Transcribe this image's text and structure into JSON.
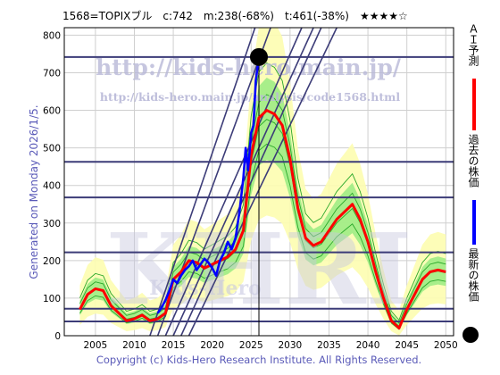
{
  "header": {
    "code": "1568=TOPIXブル",
    "current": "c:742",
    "min": "m:238(-68%)",
    "target": "t:461(-38%)",
    "stars": "★★★★☆"
  },
  "side_text": "Generated on Monday 2026/1/5.",
  "footer": "Copyright (c) Kids-Hero Research Institute. All Rights Reserved.",
  "watermarks": {
    "url_main": "http://kids-hero.main.jp/",
    "url_analysis": "http://kids-hero.main.jp/analysis/code1568.html",
    "big": "KHRI",
    "small": "Kids-Hero"
  },
  "legend": {
    "forecast": "ＡＩ予測",
    "past": "過去の株価",
    "latest": "最新の株価"
  },
  "colors": {
    "forecast": "#ff0000",
    "past": "#0000ff",
    "latest": "#000000",
    "band_fill": "#fdfdb0",
    "band_inner": "#8be87b",
    "band_line": "#2aa82a",
    "guide": "#3c3c78",
    "grid": "#cfcfcf"
  },
  "chart_data": {
    "type": "line",
    "xlim": [
      2001,
      2051
    ],
    "ylim": [
      0,
      820
    ],
    "xticks": [
      2005,
      2010,
      2015,
      2020,
      2025,
      2030,
      2035,
      2040,
      2045,
      2050
    ],
    "yticks": [
      0,
      100,
      200,
      300,
      400,
      500,
      600,
      700,
      800
    ],
    "grid": true,
    "horizontal_levels": [
      742,
      463,
      368,
      222,
      72,
      38
    ],
    "latest_point": {
      "x": 2026.0,
      "y": 742
    },
    "current_year_marker": 2026.0,
    "trend_lines": [
      {
        "x": [
          2012.0,
          2025.5
        ],
        "y": [
          0,
          820
        ]
      },
      {
        "x": [
          2013.0,
          2027.5
        ],
        "y": [
          0,
          820
        ]
      },
      {
        "x": [
          2014.0,
          2031.5
        ],
        "y": [
          0,
          820
        ]
      },
      {
        "x": [
          2015.0,
          2033.0
        ],
        "y": [
          0,
          820
        ]
      },
      {
        "x": [
          2016.0,
          2034.0
        ],
        "y": [
          0,
          820
        ]
      },
      {
        "x": [
          2017.0,
          2036.0
        ],
        "y": [
          0,
          820
        ]
      }
    ],
    "series": [
      {
        "key": "forecast",
        "x": [
          2003,
          2004,
          2005,
          2006,
          2007,
          2008,
          2009,
          2010,
          2011,
          2012,
          2013,
          2014,
          2015,
          2016,
          2017,
          2018,
          2019,
          2020,
          2021,
          2022,
          2023,
          2024,
          2025,
          2026,
          2027,
          2028,
          2029,
          2030,
          2031,
          2032,
          2033,
          2034,
          2035,
          2036,
          2037,
          2038,
          2039,
          2040,
          2041,
          2042,
          2043,
          2044,
          2045,
          2046,
          2047,
          2048,
          2049,
          2050
        ],
        "y": [
          70,
          110,
          125,
          120,
          80,
          60,
          40,
          45,
          55,
          40,
          45,
          60,
          150,
          170,
          200,
          195,
          180,
          190,
          200,
          210,
          230,
          280,
          480,
          580,
          600,
          590,
          560,
          470,
          340,
          260,
          240,
          250,
          280,
          310,
          330,
          350,
          310,
          250,
          170,
          100,
          40,
          20,
          70,
          110,
          150,
          170,
          175,
          170
        ]
      },
      {
        "key": "past",
        "x": [
          2013.0,
          2013.5,
          2014.0,
          2014.5,
          2015.0,
          2015.5,
          2016.0,
          2016.5,
          2017.0,
          2017.5,
          2018.0,
          2018.5,
          2019.0,
          2019.5,
          2020.0,
          2020.5,
          2021.0,
          2021.5,
          2022.0,
          2022.5,
          2023.0,
          2023.5,
          2024.0,
          2024.3,
          2024.6,
          2025.0,
          2025.3,
          2025.6,
          2026.0
        ],
        "y": [
          60,
          75,
          95,
          120,
          150,
          140,
          160,
          175,
          185,
          200,
          175,
          190,
          205,
          195,
          180,
          160,
          200,
          220,
          250,
          230,
          260,
          330,
          420,
          500,
          440,
          540,
          560,
          680,
          742
        ]
      }
    ]
  }
}
